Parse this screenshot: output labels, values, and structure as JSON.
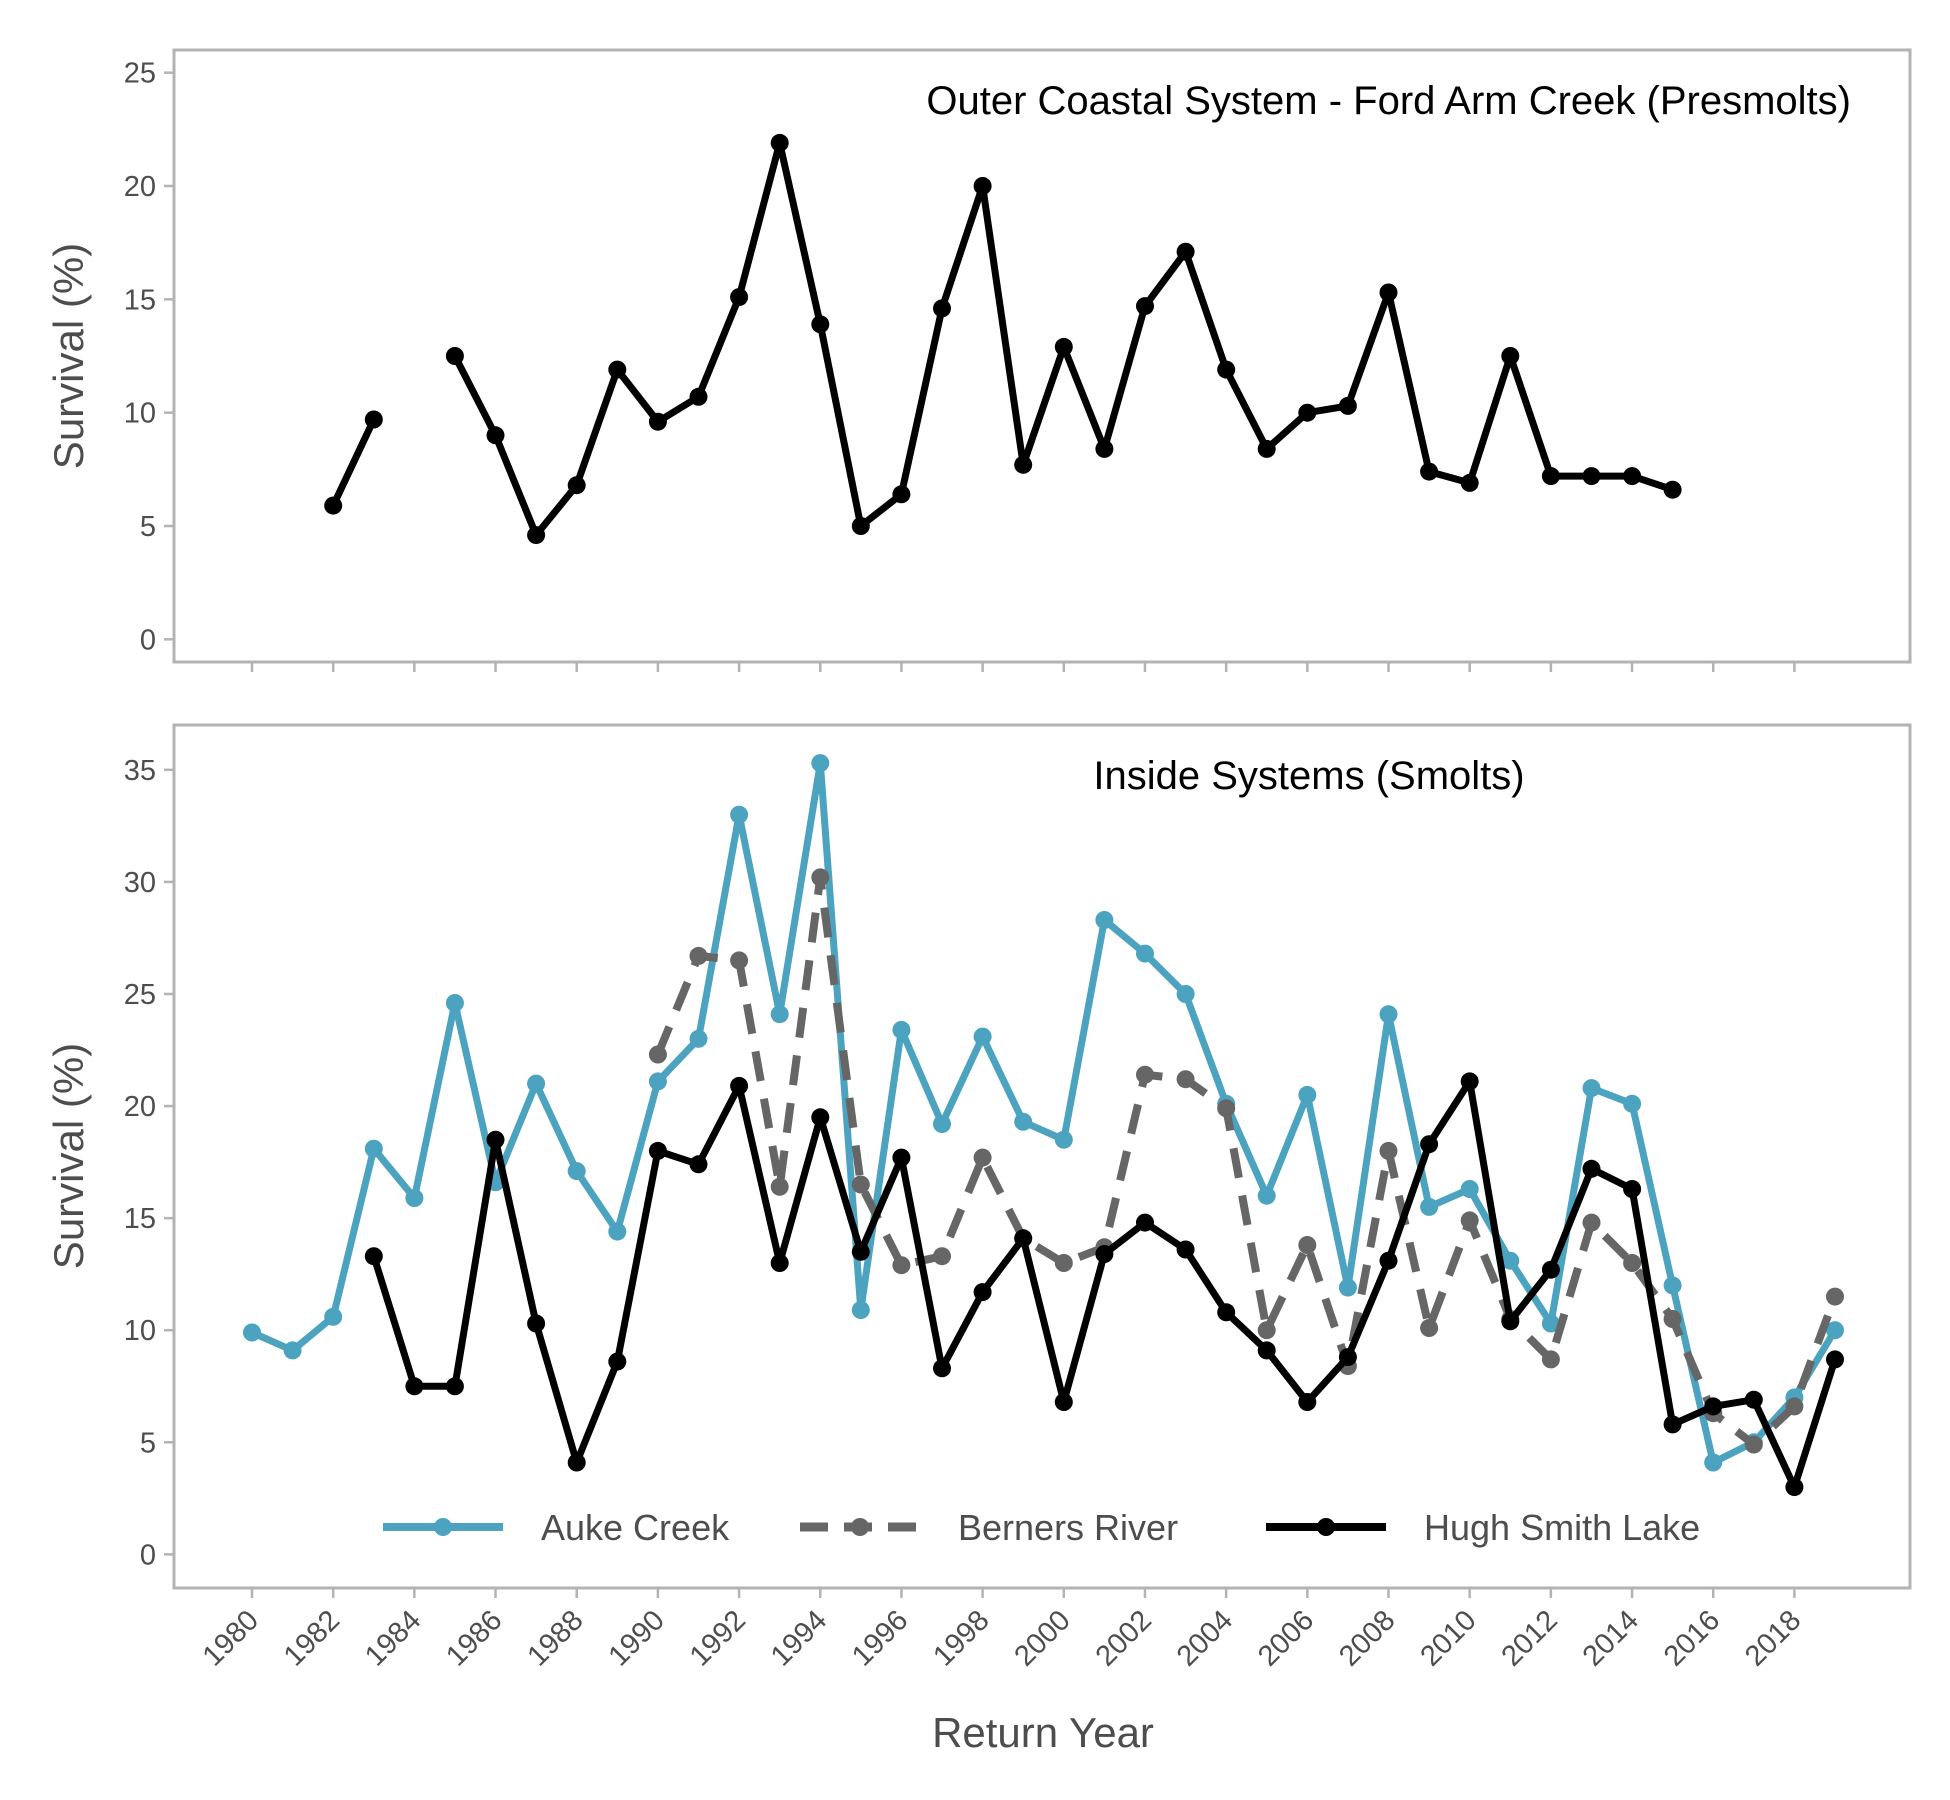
{
  "chart_data": [
    {
      "type": "line",
      "title": "Outer Coastal System - Ford Arm Creek (Presmolts)",
      "ylabel": "Survival (%)",
      "xlabel": "",
      "ylim": [
        -1,
        26
      ],
      "yticks": [
        0,
        5,
        10,
        15,
        20,
        25
      ],
      "series": [
        {
          "color": "#000000",
          "points": [
            [
              1982,
              5.9
            ],
            [
              1983,
              9.7
            ],
            [
              1984,
              null
            ],
            [
              1985,
              12.5
            ],
            [
              1986,
              9.0
            ],
            [
              1987,
              4.6
            ],
            [
              1988,
              6.8
            ],
            [
              1989,
              11.9
            ],
            [
              1990,
              9.6
            ],
            [
              1991,
              10.7
            ],
            [
              1992,
              15.1
            ],
            [
              1993,
              21.9
            ],
            [
              1994,
              13.9
            ],
            [
              1995,
              5.0
            ],
            [
              1996,
              6.4
            ],
            [
              1997,
              14.6
            ],
            [
              1998,
              20.0
            ],
            [
              1999,
              7.7
            ],
            [
              2000,
              12.9
            ],
            [
              2001,
              8.4
            ],
            [
              2002,
              14.7
            ],
            [
              2003,
              17.1
            ],
            [
              2004,
              11.9
            ],
            [
              2005,
              8.4
            ],
            [
              2006,
              10.0
            ],
            [
              2007,
              10.3
            ],
            [
              2008,
              15.3
            ],
            [
              2009,
              7.4
            ],
            [
              2010,
              6.9
            ],
            [
              2011,
              12.5
            ],
            [
              2012,
              7.2
            ],
            [
              2013,
              7.2
            ],
            [
              2014,
              7.2
            ],
            [
              2015,
              6.6
            ]
          ]
        }
      ]
    },
    {
      "type": "line",
      "title": "Inside Systems (Smolts)",
      "ylabel": "Survival (%)",
      "xlabel": "Return Year",
      "ylim": [
        -1.5,
        37
      ],
      "yticks": [
        0,
        5,
        10,
        15,
        20,
        25,
        30,
        35
      ],
      "xticks": [
        1980,
        1982,
        1984,
        1986,
        1988,
        1990,
        1992,
        1994,
        1996,
        1998,
        2000,
        2002,
        2004,
        2006,
        2008,
        2010,
        2012,
        2014,
        2016,
        2018
      ],
      "legend_position": "bottom",
      "series": [
        {
          "name": "Auke Creek",
          "color": "#4ba3bf",
          "dash": "solid",
          "points": [
            [
              1980,
              9.9
            ],
            [
              1981,
              9.1
            ],
            [
              1982,
              10.6
            ],
            [
              1983,
              18.1
            ],
            [
              1984,
              15.9
            ],
            [
              1985,
              24.6
            ],
            [
              1986,
              16.6
            ],
            [
              1987,
              21.0
            ],
            [
              1988,
              17.1
            ],
            [
              1989,
              14.4
            ],
            [
              1990,
              21.1
            ],
            [
              1991,
              23.0
            ],
            [
              1992,
              33.0
            ],
            [
              1993,
              24.1
            ],
            [
              1994,
              35.3
            ],
            [
              1995,
              10.9
            ],
            [
              1996,
              23.4
            ],
            [
              1997,
              19.2
            ],
            [
              1998,
              23.1
            ],
            [
              1999,
              19.3
            ],
            [
              2000,
              18.5
            ],
            [
              2001,
              28.3
            ],
            [
              2002,
              26.8
            ],
            [
              2003,
              25.0
            ],
            [
              2004,
              20.1
            ],
            [
              2005,
              16.0
            ],
            [
              2006,
              20.5
            ],
            [
              2007,
              11.9
            ],
            [
              2008,
              24.1
            ],
            [
              2009,
              15.5
            ],
            [
              2010,
              16.3
            ],
            [
              2011,
              13.1
            ],
            [
              2012,
              10.3
            ],
            [
              2013,
              20.8
            ],
            [
              2014,
              20.1
            ],
            [
              2015,
              12.0
            ],
            [
              2016,
              4.1
            ],
            [
              2017,
              5.0
            ],
            [
              2018,
              7.0
            ],
            [
              2019,
              10.0
            ]
          ]
        },
        {
          "name": "Berners River",
          "color": "#666666",
          "dash": "dashed",
          "points": [
            [
              1990,
              22.3
            ],
            [
              1991,
              26.7
            ],
            [
              1992,
              26.5
            ],
            [
              1993,
              16.4
            ],
            [
              1994,
              30.2
            ],
            [
              1995,
              16.5
            ],
            [
              1996,
              12.9
            ],
            [
              1997,
              13.3
            ],
            [
              1998,
              17.7
            ],
            [
              1999,
              14.1
            ],
            [
              2000,
              13.0
            ],
            [
              2001,
              13.7
            ],
            [
              2002,
              21.4
            ],
            [
              2003,
              21.2
            ],
            [
              2004,
              19.9
            ],
            [
              2005,
              10.0
            ],
            [
              2006,
              13.8
            ],
            [
              2007,
              8.4
            ],
            [
              2008,
              18.0
            ],
            [
              2009,
              10.1
            ],
            [
              2010,
              14.9
            ],
            [
              2011,
              10.5
            ],
            [
              2012,
              8.7
            ],
            [
              2013,
              14.8
            ],
            [
              2014,
              13.0
            ],
            [
              2015,
              10.5
            ],
            [
              2016,
              6.3
            ],
            [
              2017,
              4.9
            ],
            [
              2018,
              6.6
            ],
            [
              2019,
              11.5
            ]
          ]
        },
        {
          "name": "Hugh Smith Lake",
          "color": "#000000",
          "dash": "solid",
          "points": [
            [
              1983,
              13.3
            ],
            [
              1984,
              7.5
            ],
            [
              1985,
              7.5
            ],
            [
              1986,
              18.5
            ],
            [
              1987,
              10.3
            ],
            [
              1988,
              4.1
            ],
            [
              1989,
              8.6
            ],
            [
              1990,
              18.0
            ],
            [
              1991,
              17.4
            ],
            [
              1992,
              20.9
            ],
            [
              1993,
              13.0
            ],
            [
              1994,
              19.5
            ],
            [
              1995,
              13.5
            ],
            [
              1996,
              17.7
            ],
            [
              1997,
              8.3
            ],
            [
              1998,
              11.7
            ],
            [
              1999,
              14.1
            ],
            [
              2000,
              6.8
            ],
            [
              2001,
              13.4
            ],
            [
              2002,
              14.8
            ],
            [
              2003,
              13.6
            ],
            [
              2004,
              10.8
            ],
            [
              2005,
              9.1
            ],
            [
              2006,
              6.8
            ],
            [
              2007,
              8.8
            ],
            [
              2008,
              13.1
            ],
            [
              2009,
              18.3
            ],
            [
              2010,
              21.1
            ],
            [
              2011,
              10.4
            ],
            [
              2012,
              12.7
            ],
            [
              2013,
              17.2
            ],
            [
              2014,
              16.3
            ],
            [
              2015,
              5.8
            ],
            [
              2016,
              6.6
            ],
            [
              2017,
              6.9
            ],
            [
              2018,
              3.0
            ],
            [
              2019,
              8.7
            ]
          ]
        }
      ]
    }
  ]
}
